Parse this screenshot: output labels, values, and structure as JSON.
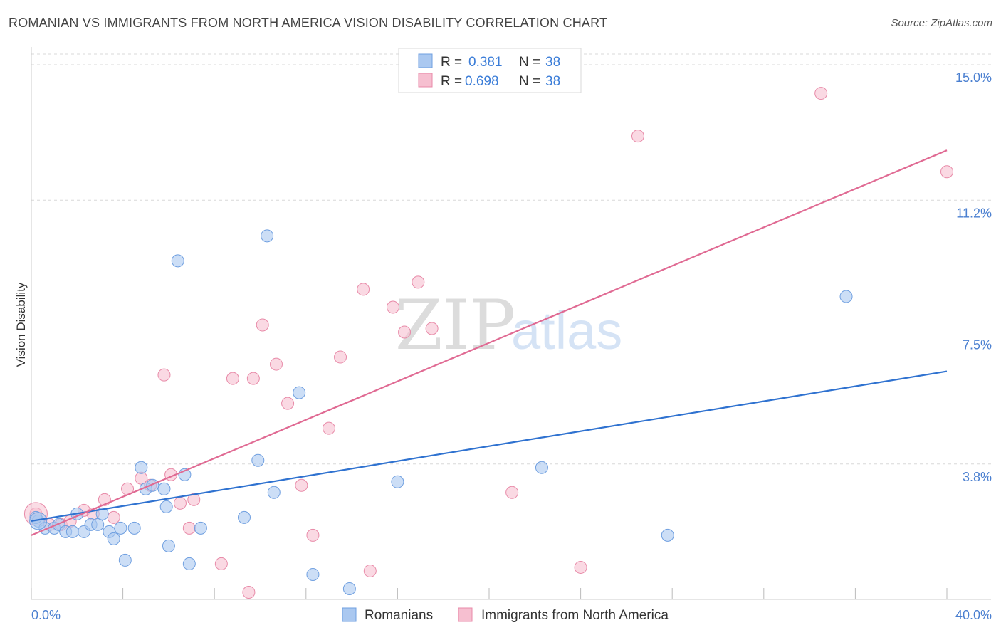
{
  "title": "ROMANIAN VS IMMIGRANTS FROM NORTH AMERICA VISION DISABILITY CORRELATION CHART",
  "source": "Source: ZipAtlas.com",
  "watermark": {
    "zip": "ZIP",
    "atlas": "atlas"
  },
  "colors": {
    "blue_fill": "#aac8f0",
    "blue_stroke": "#6f9fe0",
    "blue_line": "#2f72d0",
    "pink_fill": "#f6bfd0",
    "pink_stroke": "#e88aa8",
    "pink_line": "#e06a93",
    "axis_label": "#4a7fd0",
    "grid": "#d8d8d8"
  },
  "legend": {
    "rows": [
      {
        "r_label": "R =",
        "r_value": "0.381",
        "n_label": "N =",
        "n_value": "38"
      },
      {
        "r_label": "R =",
        "r_value": "0.698",
        "n_label": "N =",
        "n_value": "38"
      }
    ]
  },
  "bottom_legend": [
    "Romanians",
    "Immigrants from North America"
  ],
  "chart_data": {
    "type": "scatter",
    "xlabel": "",
    "ylabel": "Vision Disability",
    "xlim": [
      0,
      40
    ],
    "ylim": [
      0,
      15.3
    ],
    "x_tick_labels": [
      "0.0%",
      "40.0%"
    ],
    "y_ticks": [
      3.8,
      7.5,
      11.2,
      15.0
    ],
    "y_tick_labels": [
      "3.8%",
      "7.5%",
      "11.2%",
      "15.0%"
    ],
    "series": [
      {
        "name": "Romanians",
        "r": 0.381,
        "n": 38,
        "trend": {
          "x": [
            0,
            40
          ],
          "y": [
            2.2,
            6.4
          ]
        },
        "points": [
          [
            0.3,
            2.2
          ],
          [
            0.6,
            2.0
          ],
          [
            1.0,
            2.0
          ],
          [
            1.2,
            2.1
          ],
          [
            1.5,
            1.9
          ],
          [
            1.8,
            1.9
          ],
          [
            2.0,
            2.4
          ],
          [
            2.3,
            1.9
          ],
          [
            2.6,
            2.1
          ],
          [
            2.9,
            2.1
          ],
          [
            3.1,
            2.4
          ],
          [
            3.4,
            1.9
          ],
          [
            3.6,
            1.7
          ],
          [
            3.9,
            2.0
          ],
          [
            4.1,
            1.1
          ],
          [
            4.5,
            2.0
          ],
          [
            4.8,
            3.7
          ],
          [
            5.0,
            3.1
          ],
          [
            5.3,
            3.2
          ],
          [
            5.8,
            3.1
          ],
          [
            5.9,
            2.6
          ],
          [
            6.0,
            1.5
          ],
          [
            6.4,
            9.5
          ],
          [
            6.7,
            3.5
          ],
          [
            6.9,
            1.0
          ],
          [
            7.4,
            2.0
          ],
          [
            9.3,
            2.3
          ],
          [
            9.9,
            3.9
          ],
          [
            10.3,
            10.2
          ],
          [
            10.6,
            3.0
          ],
          [
            11.7,
            5.8
          ],
          [
            12.3,
            0.7
          ],
          [
            13.9,
            0.3
          ],
          [
            16.0,
            3.3
          ],
          [
            22.3,
            3.7
          ],
          [
            27.8,
            1.8
          ],
          [
            35.6,
            8.5
          ],
          [
            0.2,
            2.3
          ]
        ]
      },
      {
        "name": "Immigrants from North America",
        "r": 0.698,
        "n": 38,
        "trend": {
          "x": [
            0,
            40
          ],
          "y": [
            1.8,
            12.6
          ]
        },
        "points": [
          [
            0.2,
            2.4
          ],
          [
            0.8,
            2.1
          ],
          [
            1.3,
            2.1
          ],
          [
            1.7,
            2.2
          ],
          [
            2.3,
            2.5
          ],
          [
            2.7,
            2.4
          ],
          [
            3.2,
            2.8
          ],
          [
            3.6,
            2.3
          ],
          [
            4.2,
            3.1
          ],
          [
            4.8,
            3.4
          ],
          [
            5.2,
            3.2
          ],
          [
            5.8,
            6.3
          ],
          [
            6.1,
            3.5
          ],
          [
            6.5,
            2.7
          ],
          [
            6.9,
            2.0
          ],
          [
            7.1,
            2.8
          ],
          [
            8.3,
            1.0
          ],
          [
            8.8,
            6.2
          ],
          [
            9.5,
            0.2
          ],
          [
            9.7,
            6.2
          ],
          [
            10.1,
            7.7
          ],
          [
            10.7,
            6.6
          ],
          [
            11.2,
            5.5
          ],
          [
            11.8,
            3.2
          ],
          [
            12.3,
            1.8
          ],
          [
            13.0,
            4.8
          ],
          [
            13.5,
            6.8
          ],
          [
            14.5,
            8.7
          ],
          [
            14.8,
            0.8
          ],
          [
            15.8,
            8.2
          ],
          [
            16.3,
            7.5
          ],
          [
            16.9,
            8.9
          ],
          [
            17.5,
            7.6
          ],
          [
            21.0,
            3.0
          ],
          [
            24.0,
            0.9
          ],
          [
            26.5,
            13.0
          ],
          [
            34.5,
            14.2
          ],
          [
            40.0,
            12.0
          ]
        ]
      }
    ]
  }
}
